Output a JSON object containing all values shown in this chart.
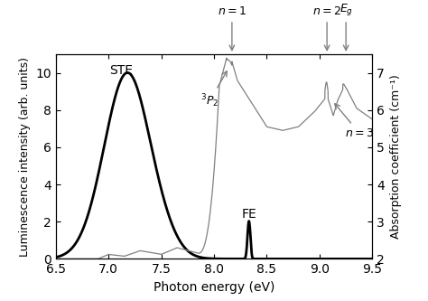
{
  "xlim": [
    6.5,
    9.5
  ],
  "ylim_left": [
    0,
    11
  ],
  "ylim_right": [
    2,
    7.5
  ],
  "xlabel": "Photon energy (eV)",
  "ylabel_left": "Luminescence intensity (arb. units)",
  "ylabel_right": "Absorption coefficient (cm⁻¹)",
  "left_yticks": [
    0,
    2,
    4,
    6,
    8,
    10
  ],
  "right_yticks": [
    2,
    3,
    4,
    5,
    6,
    7
  ],
  "xticks": [
    6.5,
    7.0,
    7.5,
    8.0,
    8.5,
    9.0,
    9.5
  ],
  "lum_color": "#000000",
  "abs_color": "#808080",
  "background_color": "#ffffff",
  "n1_x": 8.17,
  "n2_x": 9.07,
  "Eg_x": 9.25,
  "P2_x": 8.14,
  "n3_x": 9.12,
  "STE_x": 7.15,
  "STE_y": 9.8,
  "FE_x": 8.33,
  "FE_y": 2.05
}
